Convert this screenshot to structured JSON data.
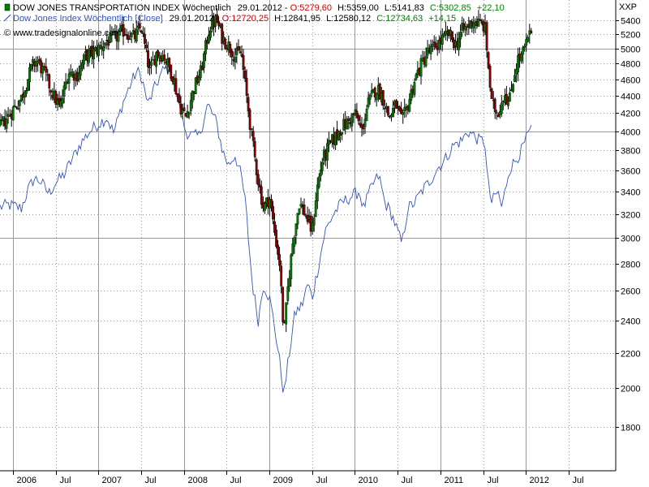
{
  "chart_data": {
    "type": "candlestick",
    "symbol_label": "XXP",
    "watermark": "© www.tradesignalonline.com",
    "legend": [
      {
        "name": "DOW JONES TRANSPORTATION INDEX Wöchentlich",
        "date": "29.01.2012",
        "o_label": "O:5279,60",
        "h_label": "H:5359,00",
        "l_label": "L:5141,83",
        "c_label": "C:5302,85",
        "chg_label": "+22,10",
        "color": "#000000"
      },
      {
        "name": "Dow Jones Index Wöchentlich [Close]",
        "date": "29.01.2012",
        "o_label": "O:12720,25",
        "h_label": "H:12841,95",
        "l_label": "L:12580,12",
        "c_label": "C:12734,63",
        "chg_label": "+14,15",
        "color": "#3355bb"
      }
    ],
    "colors": {
      "up": "#008000",
      "down": "#880000",
      "line": "#3355bb",
      "label_red": "#cc0000",
      "label_green": "#008000",
      "grid": "#999999"
    },
    "y_scale": "log",
    "y_range": [
      1600,
      5700
    ],
    "y_ticks": [
      1800,
      2000,
      2200,
      2400,
      2600,
      2800,
      3000,
      3200,
      3400,
      3600,
      3800,
      4000,
      4200,
      4400,
      4600,
      4800,
      5000,
      5200,
      5400
    ],
    "y_tick_labels": [
      "1800",
      "2000",
      "2200",
      "2400",
      "2600",
      "2800",
      "3000",
      "3200",
      "3400",
      "3600",
      "3800",
      "4000",
      "4200",
      "4400",
      "4600",
      "4800",
      "5000",
      "5200",
      "5400"
    ],
    "y_major": [
      3000,
      4000,
      5000
    ],
    "x_range": [
      2005.85,
      2013.05
    ],
    "x_labels": [
      {
        "t": 2006.0,
        "label": "2006",
        "major": true
      },
      {
        "t": 2006.5,
        "label": "Jul",
        "major": false
      },
      {
        "t": 2007.0,
        "label": "2007",
        "major": true
      },
      {
        "t": 2007.5,
        "label": "Jul",
        "major": false
      },
      {
        "t": 2008.0,
        "label": "2008",
        "major": true
      },
      {
        "t": 2008.5,
        "label": "Jul",
        "major": false
      },
      {
        "t": 2009.0,
        "label": "2009",
        "major": true
      },
      {
        "t": 2009.5,
        "label": "Jul",
        "major": false
      },
      {
        "t": 2010.0,
        "label": "2010",
        "major": true
      },
      {
        "t": 2010.5,
        "label": "Jul",
        "major": false
      },
      {
        "t": 2011.0,
        "label": "2011",
        "major": true
      },
      {
        "t": 2011.5,
        "label": "Jul",
        "major": false
      },
      {
        "t": 2012.0,
        "label": "2012",
        "major": true
      },
      {
        "t": 2012.5,
        "label": "Jul",
        "major": false
      }
    ],
    "transport_close_path": [
      [
        2005.85,
        4050
      ],
      [
        2005.95,
        4170
      ],
      [
        2006.1,
        4380
      ],
      [
        2006.22,
        4750
      ],
      [
        2006.28,
        4850
      ],
      [
        2006.38,
        4650
      ],
      [
        2006.48,
        4400
      ],
      [
        2006.55,
        4250
      ],
      [
        2006.65,
        4700
      ],
      [
        2006.75,
        4650
      ],
      [
        2006.85,
        4900
      ],
      [
        2006.95,
        4950
      ],
      [
        2007.1,
        5100
      ],
      [
        2007.2,
        5150
      ],
      [
        2007.3,
        5250
      ],
      [
        2007.42,
        5150
      ],
      [
        2007.5,
        5300
      ],
      [
        2007.6,
        4700
      ],
      [
        2007.68,
        4950
      ],
      [
        2007.77,
        4900
      ],
      [
        2007.87,
        4650
      ],
      [
        2007.95,
        4300
      ],
      [
        2008.02,
        4150
      ],
      [
        2008.12,
        4500
      ],
      [
        2008.2,
        4700
      ],
      [
        2008.3,
        5300
      ],
      [
        2008.38,
        5400
      ],
      [
        2008.45,
        5150
      ],
      [
        2008.52,
        5050
      ],
      [
        2008.6,
        4900
      ],
      [
        2008.67,
        4950
      ],
      [
        2008.72,
        4500
      ],
      [
        2008.8,
        3900
      ],
      [
        2008.87,
        3500
      ],
      [
        2008.93,
        3250
      ],
      [
        2009.0,
        3350
      ],
      [
        2009.05,
        3100
      ],
      [
        2009.12,
        2800
      ],
      [
        2009.17,
        2300
      ],
      [
        2009.22,
        2650
      ],
      [
        2009.28,
        3000
      ],
      [
        2009.35,
        3300
      ],
      [
        2009.42,
        3200
      ],
      [
        2009.5,
        3050
      ],
      [
        2009.55,
        3400
      ],
      [
        2009.62,
        3700
      ],
      [
        2009.7,
        3850
      ],
      [
        2009.78,
        3950
      ],
      [
        2009.85,
        4050
      ],
      [
        2009.92,
        4100
      ],
      [
        2010.0,
        4200
      ],
      [
        2010.08,
        4000
      ],
      [
        2010.15,
        4300
      ],
      [
        2010.25,
        4500
      ],
      [
        2010.32,
        4400
      ],
      [
        2010.4,
        4150
      ],
      [
        2010.48,
        4300
      ],
      [
        2010.55,
        4100
      ],
      [
        2010.62,
        4300
      ],
      [
        2010.7,
        4600
      ],
      [
        2010.78,
        4800
      ],
      [
        2010.85,
        4950
      ],
      [
        2010.92,
        5000
      ],
      [
        2011.0,
        5100
      ],
      [
        2011.1,
        5200
      ],
      [
        2011.18,
        5050
      ],
      [
        2011.25,
        5250
      ],
      [
        2011.32,
        5300
      ],
      [
        2011.38,
        5400
      ],
      [
        2011.45,
        5350
      ],
      [
        2011.52,
        5300
      ],
      [
        2011.55,
        4900
      ],
      [
        2011.6,
        4300
      ],
      [
        2011.67,
        4200
      ],
      [
        2011.75,
        4450
      ],
      [
        2011.8,
        4300
      ],
      [
        2011.85,
        4600
      ],
      [
        2011.9,
        4850
      ],
      [
        2011.95,
        4900
      ],
      [
        2012.0,
        5050
      ],
      [
        2012.08,
        5300
      ]
    ],
    "djia_close_path": [
      [
        2005.85,
        3260
      ],
      [
        2005.95,
        3280
      ],
      [
        2006.1,
        3250
      ],
      [
        2006.18,
        3420
      ],
      [
        2006.25,
        3520
      ],
      [
        2006.32,
        3500
      ],
      [
        2006.42,
        3380
      ],
      [
        2006.5,
        3480
      ],
      [
        2006.6,
        3560
      ],
      [
        2006.7,
        3720
      ],
      [
        2006.8,
        3880
      ],
      [
        2006.9,
        4000
      ],
      [
        2007.0,
        4080
      ],
      [
        2007.1,
        4150
      ],
      [
        2007.18,
        3980
      ],
      [
        2007.28,
        4300
      ],
      [
        2007.38,
        4550
      ],
      [
        2007.45,
        4700
      ],
      [
        2007.5,
        4650
      ],
      [
        2007.58,
        4300
      ],
      [
        2007.66,
        4500
      ],
      [
        2007.75,
        4700
      ],
      [
        2007.8,
        4750
      ],
      [
        2007.88,
        4600
      ],
      [
        2007.95,
        4250
      ],
      [
        2008.02,
        4000
      ],
      [
        2008.1,
        3950
      ],
      [
        2008.18,
        3950
      ],
      [
        2008.28,
        4300
      ],
      [
        2008.38,
        4100
      ],
      [
        2008.45,
        3800
      ],
      [
        2008.52,
        3650
      ],
      [
        2008.6,
        3750
      ],
      [
        2008.67,
        3550
      ],
      [
        2008.72,
        3300
      ],
      [
        2008.8,
        2650
      ],
      [
        2008.87,
        2400
      ],
      [
        2008.93,
        2650
      ],
      [
        2009.0,
        2550
      ],
      [
        2009.05,
        2400
      ],
      [
        2009.12,
        2150
      ],
      [
        2009.17,
        1960
      ],
      [
        2009.22,
        2150
      ],
      [
        2009.3,
        2450
      ],
      [
        2009.38,
        2500
      ],
      [
        2009.45,
        2650
      ],
      [
        2009.5,
        2550
      ],
      [
        2009.58,
        2800
      ],
      [
        2009.65,
        3050
      ],
      [
        2009.75,
        3200
      ],
      [
        2009.85,
        3300
      ],
      [
        2009.95,
        3350
      ],
      [
        2010.05,
        3400
      ],
      [
        2010.1,
        3250
      ],
      [
        2010.2,
        3450
      ],
      [
        2010.28,
        3550
      ],
      [
        2010.35,
        3300
      ],
      [
        2010.43,
        3200
      ],
      [
        2010.5,
        3050
      ],
      [
        2010.55,
        2950
      ],
      [
        2010.62,
        3250
      ],
      [
        2010.7,
        3300
      ],
      [
        2010.78,
        3400
      ],
      [
        2010.88,
        3500
      ],
      [
        2010.95,
        3600
      ],
      [
        2011.05,
        3700
      ],
      [
        2011.15,
        3850
      ],
      [
        2011.25,
        3900
      ],
      [
        2011.32,
        4000
      ],
      [
        2011.4,
        3950
      ],
      [
        2011.45,
        3900
      ],
      [
        2011.52,
        3900
      ],
      [
        2011.55,
        3500
      ],
      [
        2011.6,
        3300
      ],
      [
        2011.67,
        3400
      ],
      [
        2011.72,
        3250
      ],
      [
        2011.8,
        3600
      ],
      [
        2011.88,
        3700
      ],
      [
        2011.95,
        3800
      ],
      [
        2012.02,
        3950
      ],
      [
        2012.08,
        4050
      ]
    ]
  }
}
